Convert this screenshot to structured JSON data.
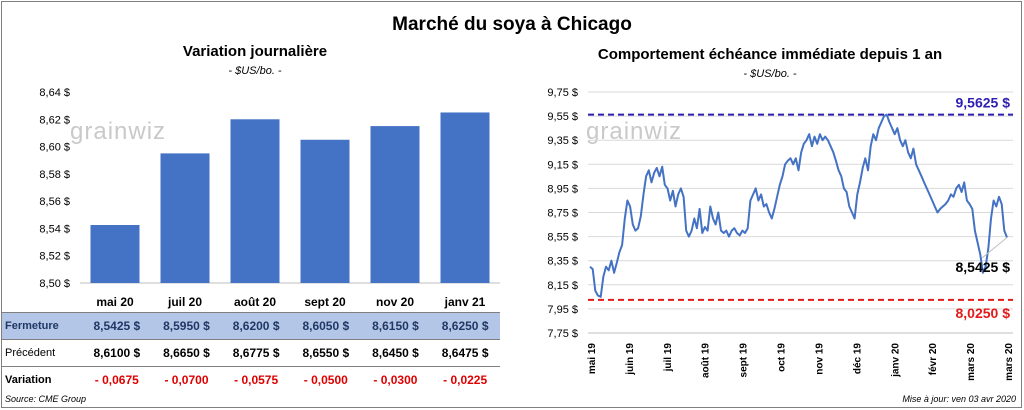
{
  "title": "Marché du soya à Chicago",
  "source": "Source: CME Group",
  "updated": "Mise à jour: ven 03 avr 2020",
  "watermark": "grainwiz",
  "colors": {
    "bars": "#4472c4",
    "line": "#4472c4",
    "high": "#2e1fb3",
    "low": "#e31a1a",
    "close_row": "#b4c6e7",
    "negative": "#e00000"
  },
  "chart_data": [
    {
      "type": "bar",
      "title": "Variation  journalière",
      "subtitle": "- $US/bo. -",
      "categories": [
        "mai 20",
        "juil 20",
        "août 20",
        "sept 20",
        "nov 20",
        "janv 21"
      ],
      "values": [
        8.5425,
        8.595,
        8.62,
        8.605,
        8.615,
        8.625
      ],
      "ylim": [
        8.5,
        8.64
      ],
      "yticks": [
        "8,50 $",
        "8,52 $",
        "8,54 $",
        "8,56 $",
        "8,58 $",
        "8,60 $",
        "8,62 $",
        "8,64 $"
      ],
      "table": {
        "rows": [
          {
            "label": "Fermeture",
            "values": [
              "8,5425  $",
              "8,5950  $",
              "8,6200  $",
              "8,6050  $",
              "8,6150  $",
              "8,6250  $"
            ]
          },
          {
            "label": "Précédent",
            "values": [
              "8,6100  $",
              "8,6650  $",
              "8,6775  $",
              "8,6550  $",
              "8,6450  $",
              "8,6475  $"
            ]
          },
          {
            "label": "Variation",
            "values": [
              "- 0,0675",
              "- 0,0700",
              "- 0,0575",
              "- 0,0500",
              "- 0,0300",
              "- 0,0225"
            ]
          }
        ]
      }
    },
    {
      "type": "line",
      "title": "Comportement  échéance immédiate depuis 1 an",
      "subtitle": "- $US/bo. -",
      "ylim": [
        7.75,
        9.75
      ],
      "yticks": [
        "7,75 $",
        "7,95 $",
        "8,15 $",
        "8,35 $",
        "8,55 $",
        "8,75 $",
        "8,95 $",
        "9,15 $",
        "9,35 $",
        "9,55 $",
        "9,75 $"
      ],
      "xticks": [
        "mai 19",
        "juin 19",
        "juil 19",
        "août 19",
        "sept 19",
        "oct 19",
        "nov 19",
        "déc 19",
        "janv 20",
        "févr 20",
        "mars 20",
        "mars 20"
      ],
      "high": {
        "value": 9.5625,
        "label": "9,5625  $"
      },
      "low": {
        "value": 8.025,
        "label": "8,0250  $"
      },
      "last": {
        "value": 8.5425,
        "label": "8,5425 $"
      },
      "values": [
        8.3,
        8.28,
        8.1,
        8.06,
        8.05,
        8.22,
        8.3,
        8.27,
        8.35,
        8.25,
        8.33,
        8.42,
        8.48,
        8.7,
        8.85,
        8.8,
        8.65,
        8.6,
        8.62,
        8.72,
        8.9,
        9.05,
        9.1,
        9.0,
        9.08,
        9.12,
        9.05,
        9.13,
        8.98,
        8.95,
        8.85,
        8.93,
        8.8,
        8.9,
        8.95,
        8.88,
        8.6,
        8.55,
        8.6,
        8.7,
        8.62,
        8.78,
        8.58,
        8.63,
        8.6,
        8.8,
        8.7,
        8.65,
        8.75,
        8.6,
        8.58,
        8.6,
        8.55,
        8.6,
        8.62,
        8.58,
        8.56,
        8.6,
        8.58,
        8.62,
        8.85,
        8.9,
        8.95,
        8.85,
        8.9,
        8.8,
        8.82,
        8.75,
        8.7,
        8.78,
        8.88,
        8.98,
        9.05,
        9.15,
        9.18,
        9.2,
        9.15,
        9.2,
        9.1,
        9.25,
        9.32,
        9.35,
        9.4,
        9.3,
        9.38,
        9.32,
        9.4,
        9.35,
        9.38,
        9.35,
        9.3,
        9.25,
        9.18,
        9.1,
        9.05,
        8.95,
        8.92,
        8.8,
        8.75,
        8.7,
        8.9,
        9.0,
        9.12,
        9.2,
        9.1,
        9.3,
        9.4,
        9.35,
        9.45,
        9.5,
        9.55,
        9.5625,
        9.5,
        9.45,
        9.4,
        9.45,
        9.35,
        9.3,
        9.35,
        9.25,
        9.2,
        9.28,
        9.15,
        9.1,
        9.05,
        9.0,
        8.95,
        8.9,
        8.85,
        8.8,
        8.75,
        8.78,
        8.8,
        8.82,
        8.85,
        8.9,
        8.88,
        8.95,
        8.98,
        8.92,
        9.0,
        8.85,
        8.82,
        8.78,
        8.6,
        8.5,
        8.4,
        8.25,
        8.3,
        8.45,
        8.7,
        8.85,
        8.8,
        8.88,
        8.82,
        8.6,
        8.5425
      ]
    }
  ]
}
